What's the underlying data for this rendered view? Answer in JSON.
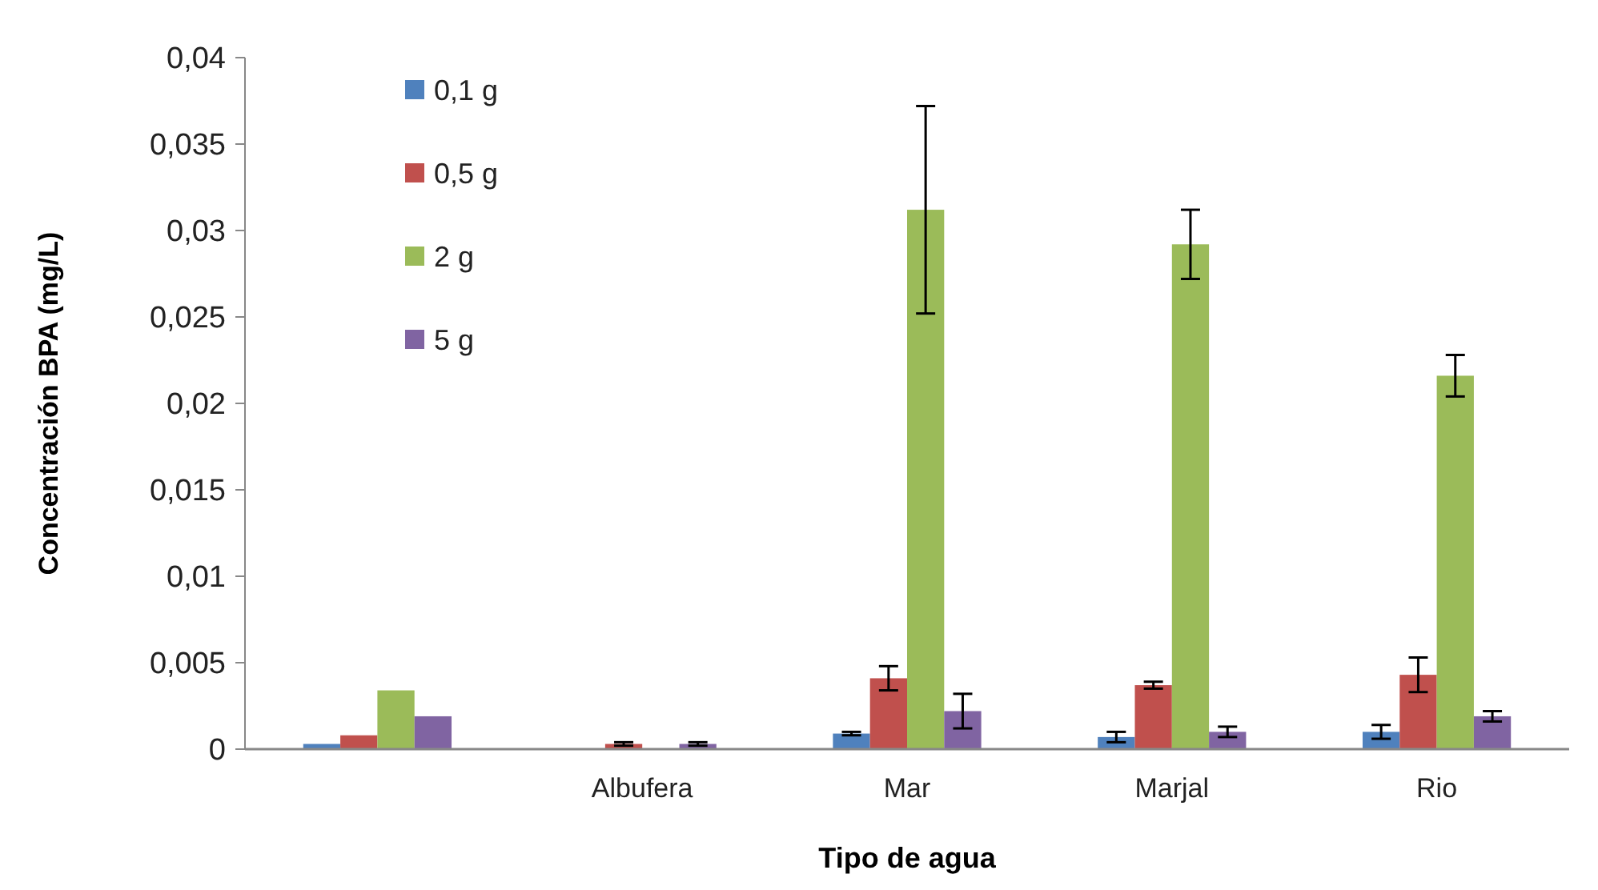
{
  "chart_data": {
    "type": "bar",
    "xlabel": "Tipo de agua",
    "ylabel": "Concentración BPA (mg/L)",
    "categories": [
      null,
      "Albufera",
      "Mar",
      "Marjal",
      "Rio"
    ],
    "series": [
      {
        "name": "0,1 g",
        "color": "#4f81bd",
        "values": [
          0.0003,
          0,
          0.0009,
          0.0007,
          0.001
        ],
        "errors": [
          null,
          null,
          0.0001,
          0.0003,
          0.0004
        ]
      },
      {
        "name": "0,5 g",
        "color": "#c0504d",
        "values": [
          0.0008,
          0.0003,
          0.0041,
          0.0037,
          0.0043
        ],
        "errors": [
          null,
          0.0001,
          0.0007,
          0.0002,
          0.001
        ]
      },
      {
        "name": "2 g",
        "color": "#9bbb59",
        "values": [
          0.0034,
          0,
          0.0312,
          0.0292,
          0.0216
        ],
        "errors": [
          null,
          null,
          0.006,
          0.002,
          0.0012
        ]
      },
      {
        "name": "5 g",
        "color": "#8064a2",
        "values": [
          0.0019,
          0.0003,
          0.0022,
          0.001,
          0.0019
        ],
        "errors": [
          null,
          0.0001,
          0.001,
          0.0003,
          0.0003
        ]
      }
    ],
    "ylim": [
      0,
      0.04
    ],
    "yticks": [
      {
        "value": 0,
        "label": "0"
      },
      {
        "value": 0.005,
        "label": "0,005"
      },
      {
        "value": 0.01,
        "label": "0,01"
      },
      {
        "value": 0.015,
        "label": "0,015"
      },
      {
        "value": 0.02,
        "label": "0,02"
      },
      {
        "value": 0.025,
        "label": "0,025"
      },
      {
        "value": 0.03,
        "label": "0,03"
      },
      {
        "value": 0.035,
        "label": "0,035"
      },
      {
        "value": 0.04,
        "label": "0,04"
      }
    ],
    "grid": false,
    "legend": "top left"
  }
}
